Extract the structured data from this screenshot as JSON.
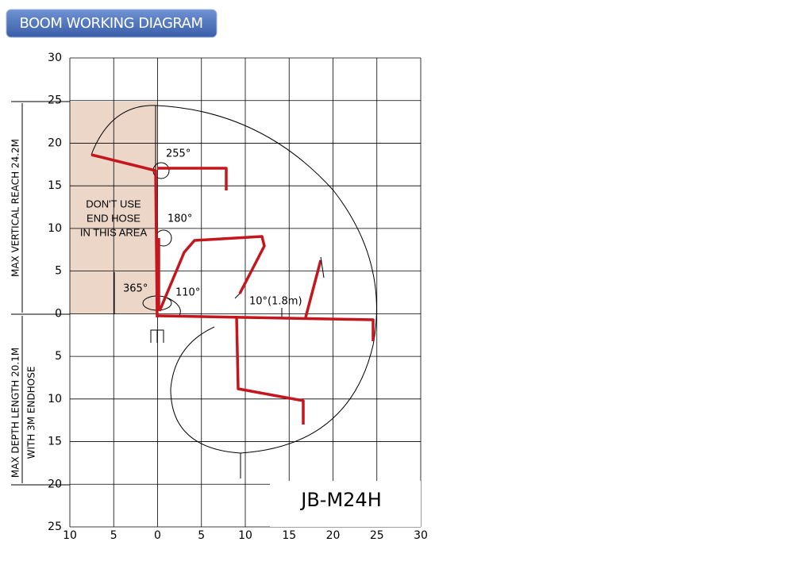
{
  "header": {
    "title": "BOOM WORKING DIAGRAM"
  },
  "diagram": {
    "y_axis_labels": [
      "30",
      "25",
      "20",
      "15",
      "10",
      "5",
      "0",
      "5",
      "10",
      "15",
      "20",
      "25"
    ],
    "x_axis_labels": [
      "10",
      "5",
      "0",
      "5",
      "10",
      "15",
      "20",
      "25",
      "30"
    ],
    "side_labels": {
      "vertical_reach": "MAX  VERTICAL  REACH  24.2M",
      "depth_length": "MAX  DEPTH  LENGTH  20.1M",
      "endhose": "WITH  3M  ENDHOSE"
    },
    "note": [
      "DON'T USE",
      "END HOSE",
      "IN THIS AREA"
    ],
    "angles": [
      "255°",
      "180°",
      "365°",
      "110°",
      "10°(1.8m)"
    ],
    "model": "JB-M24H"
  }
}
